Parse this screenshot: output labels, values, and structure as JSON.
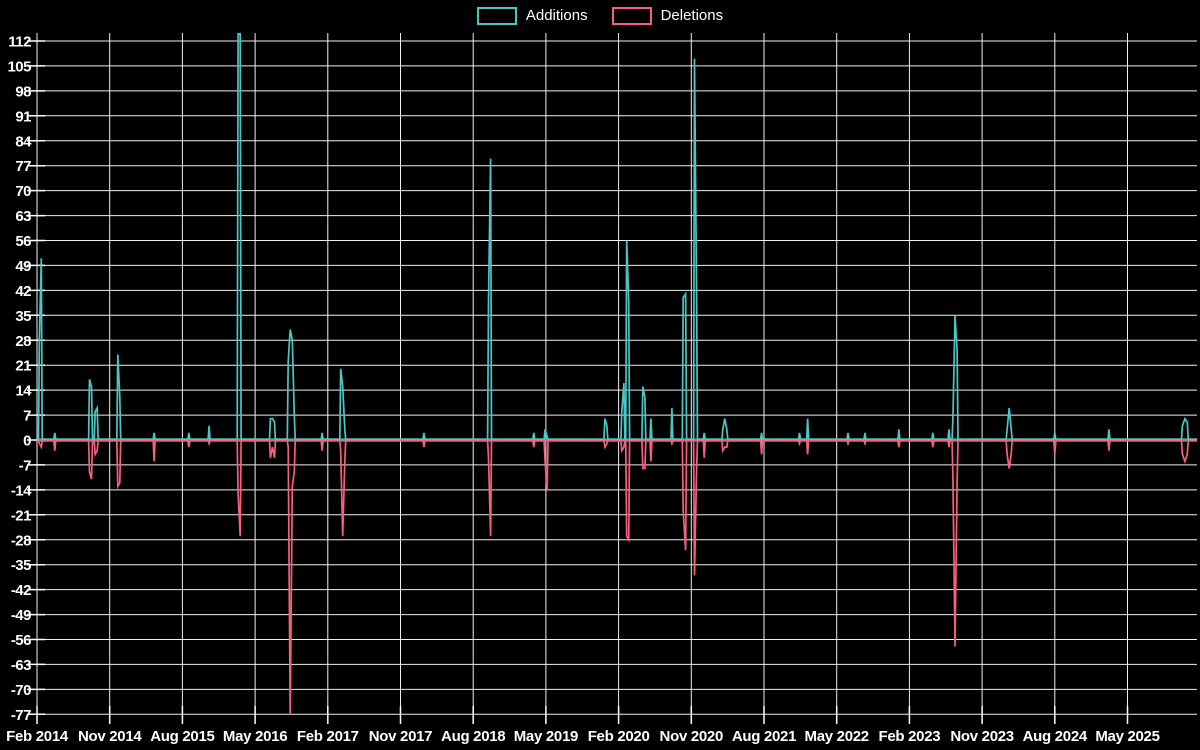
{
  "legend": {
    "additions_label": "Additions",
    "deletions_label": "Deletions"
  },
  "colors": {
    "background": "#000000",
    "text": "#ffffff",
    "grid": "#efefef",
    "zero_line": "#7e939e",
    "additions": "#4cc5c5",
    "deletions": "#f75f80"
  },
  "chart_data": {
    "type": "line",
    "title": "",
    "xlabel": "",
    "ylabel": "",
    "legend_position": "top-center",
    "grid": "on",
    "x_tick_labels": [
      "Feb 2014",
      "Nov 2014",
      "Aug 2015",
      "May 2016",
      "Feb 2017",
      "Nov 2017",
      "Aug 2018",
      "May 2019",
      "Feb 2020",
      "Nov 2020",
      "Aug 2021",
      "May 2022",
      "Feb 2023",
      "Nov 2023",
      "Aug 2024",
      "May 2025"
    ],
    "x_tick_interval_months": 9,
    "y_ticks": [
      112,
      105,
      98,
      91,
      84,
      77,
      70,
      63,
      56,
      49,
      42,
      35,
      28,
      21,
      14,
      7,
      0,
      -7,
      -14,
      -21,
      -28,
      -35,
      -42,
      -49,
      -56,
      -63,
      -70,
      -77
    ],
    "ylim": [
      -77,
      114
    ],
    "series": [
      {
        "name": "Additions",
        "key": "a",
        "color_key": "additions"
      },
      {
        "name": "Deletions",
        "key": "d",
        "color_key": "deletions"
      }
    ],
    "points_note": "m = months after Feb 2014; a = additions, d = deletions for that week; weeks not listed are 0/0; values above 114 are clipped by plot top",
    "points": [
      {
        "m": 0.3,
        "a": 29,
        "d": -1
      },
      {
        "m": 0.53,
        "a": 51,
        "d": -2
      },
      {
        "m": 2.2,
        "a": 2,
        "d": -3
      },
      {
        "m": 6.5,
        "a": 17,
        "d": -9
      },
      {
        "m": 6.75,
        "a": 15,
        "d": -11
      },
      {
        "m": 7.2,
        "a": 8,
        "d": -4
      },
      {
        "m": 7.45,
        "a": 9,
        "d": -3
      },
      {
        "m": 10.0,
        "a": 24,
        "d": -13
      },
      {
        "m": 10.25,
        "a": 12,
        "d": -12
      },
      {
        "m": 14.5,
        "a": 2,
        "d": -6
      },
      {
        "m": 18.8,
        "a": 2,
        "d": -2
      },
      {
        "m": 21.3,
        "a": 4,
        "d": -1
      },
      {
        "m": 24.9,
        "a": 114,
        "d": -15
      },
      {
        "m": 25.15,
        "a": 114,
        "d": -27
      },
      {
        "m": 28.9,
        "a": 6,
        "d": -5
      },
      {
        "m": 29.15,
        "a": 6,
        "d": -2
      },
      {
        "m": 29.4,
        "a": 5,
        "d": -5
      },
      {
        "m": 31.1,
        "a": 22,
        "d": -2
      },
      {
        "m": 31.35,
        "a": 31,
        "d": -77
      },
      {
        "m": 31.6,
        "a": 28,
        "d": -13
      },
      {
        "m": 31.85,
        "a": 7,
        "d": -9
      },
      {
        "m": 35.3,
        "a": 2,
        "d": -3
      },
      {
        "m": 37.6,
        "a": 20,
        "d": -3
      },
      {
        "m": 37.85,
        "a": 15,
        "d": -27
      },
      {
        "m": 38.1,
        "a": 3,
        "d": -6
      },
      {
        "m": 47.9,
        "a": 2,
        "d": -2
      },
      {
        "m": 55.9,
        "a": 39,
        "d": -5
      },
      {
        "m": 56.15,
        "a": 79,
        "d": -27
      },
      {
        "m": 61.5,
        "a": 2,
        "d": -2
      },
      {
        "m": 62.9,
        "a": 3,
        "d": -6
      },
      {
        "m": 63.15,
        "a": 1,
        "d": -14
      },
      {
        "m": 70.3,
        "a": 6,
        "d": -2
      },
      {
        "m": 70.55,
        "a": 4,
        "d": -1
      },
      {
        "m": 72.4,
        "a": 8,
        "d": -3
      },
      {
        "m": 72.65,
        "a": 16,
        "d": -2
      },
      {
        "m": 73.0,
        "a": 56,
        "d": -27
      },
      {
        "m": 73.25,
        "a": 39,
        "d": -28
      },
      {
        "m": 75.0,
        "a": 15,
        "d": -8
      },
      {
        "m": 75.25,
        "a": 12,
        "d": -8
      },
      {
        "m": 76.0,
        "a": 6,
        "d": -6
      },
      {
        "m": 78.6,
        "a": 9,
        "d": -1
      },
      {
        "m": 80.0,
        "a": 40,
        "d": -20
      },
      {
        "m": 80.3,
        "a": 41,
        "d": -31
      },
      {
        "m": 81.4,
        "a": 107,
        "d": -38
      },
      {
        "m": 81.65,
        "a": 40,
        "d": -8
      },
      {
        "m": 82.6,
        "a": 2,
        "d": -5
      },
      {
        "m": 84.9,
        "a": 3,
        "d": -3
      },
      {
        "m": 85.15,
        "a": 6,
        "d": -2
      },
      {
        "m": 85.4,
        "a": 3,
        "d": -2
      },
      {
        "m": 89.7,
        "a": 2,
        "d": -4
      },
      {
        "m": 94.4,
        "a": 2,
        "d": -1
      },
      {
        "m": 95.4,
        "a": 6,
        "d": -4
      },
      {
        "m": 100.4,
        "a": 2,
        "d": -1
      },
      {
        "m": 102.5,
        "a": 2,
        "d": -1
      },
      {
        "m": 106.7,
        "a": 3,
        "d": -2
      },
      {
        "m": 110.9,
        "a": 2,
        "d": -2
      },
      {
        "m": 112.9,
        "a": 3,
        "d": -2
      },
      {
        "m": 113.4,
        "a": 7,
        "d": -12
      },
      {
        "m": 113.65,
        "a": 35,
        "d": -58
      },
      {
        "m": 113.9,
        "a": 25,
        "d": -12
      },
      {
        "m": 120.1,
        "a": 3,
        "d": -4
      },
      {
        "m": 120.35,
        "a": 9,
        "d": -8
      },
      {
        "m": 120.6,
        "a": 3,
        "d": -4
      },
      {
        "m": 126.0,
        "a": 2,
        "d": -4
      },
      {
        "m": 132.7,
        "a": 3,
        "d": -3
      },
      {
        "m": 141.8,
        "a": 4,
        "d": -4
      },
      {
        "m": 142.1,
        "a": 6,
        "d": -6
      },
      {
        "m": 142.4,
        "a": 5,
        "d": -4
      }
    ]
  }
}
